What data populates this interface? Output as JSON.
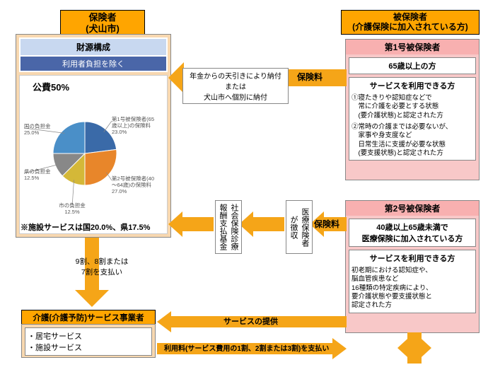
{
  "insurer": {
    "title": "保険者\n(犬山市)",
    "finance_title": "財源構成",
    "exclude_user": "利用者負担を除く",
    "public_label": "公費50%",
    "note": "※施設サービスは国20.0%、県17.5%"
  },
  "insured": {
    "title": "被保険者\n(介護保険に加入されている方)"
  },
  "pie": {
    "slices": [
      {
        "label": "第1号被保険者(65\n歳以上)の保険料",
        "value": 23.0,
        "color": "#3a6aa8"
      },
      {
        "label": "第2号被保険者(40\n～64歳)の保険料",
        "value": 27.0,
        "color": "#e8862a"
      },
      {
        "label": "市の負担金",
        "value": 12.5,
        "color": "#d4b838"
      },
      {
        "label": "県の負担金",
        "value": 12.5,
        "color": "#888888"
      },
      {
        "label": "国の負担金",
        "value": 25.0,
        "color": "#4a8fc8"
      }
    ]
  },
  "type1": {
    "header": "第1号被保険者",
    "age": "65歳以上の方",
    "svc_title": "サービスを利用できる方",
    "svc1": "①寝たきりや認知症などで\n　常に介護を必要とする状態\n　(要介護状態)と認定された方",
    "svc2": "②常時の介護までは必要ないが、\n　家事や身支度など\n　日常生活に支援が必要な状態\n　(要支援状態)と認定された方"
  },
  "type2": {
    "header": "第2号被保険者",
    "age": "40歳以上65歳未満で\n医療保険に加入されている方",
    "svc_title": "サービスを利用できる方",
    "svc": "初老期における認知症や、\n脳血管疾患など\n16種類の特定疾病により、\n要介護状態や要支援状態と\n認定された方"
  },
  "arrows": {
    "premium1": "保険料",
    "premium1_detail": "年金からの天引きにより納付\nまたは\n犬山市へ個別に納付",
    "premium2": "保険料",
    "box_a": "社会保険診療\n報酬支払基金",
    "box_b": "医療保険者\nが徴収",
    "pay_down": "9割、8割または\n7割を支払い",
    "svc_provide": "サービスの提供",
    "usage_fee": "利用料(サービス費用の1割、2割または3割)を支払い"
  },
  "provider": {
    "title": "介護(介護予防)サービス事業者",
    "item1": "・居宅サービス",
    "item2": "・施設サービス"
  },
  "colors": {
    "arrow": "#f5a518",
    "orange": "#ffa500",
    "pink": "#f8b0b0"
  }
}
